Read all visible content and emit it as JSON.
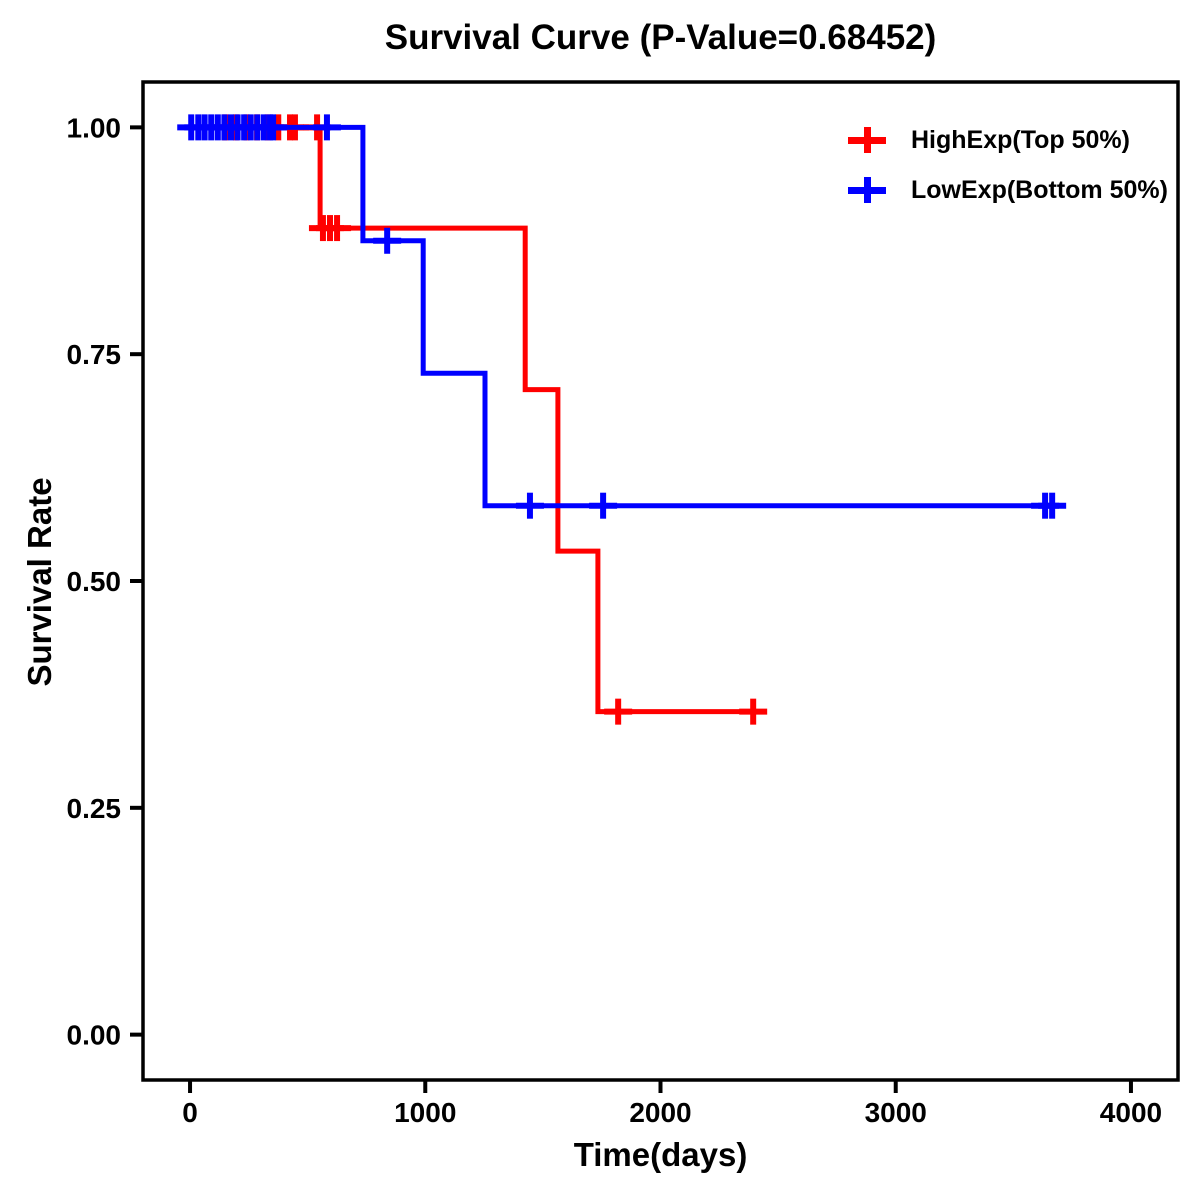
{
  "title": "Survival Curve (P-Value=0.68452)",
  "x_axis": {
    "label": "Time(days)",
    "tick_labels": [
      "0",
      "1000",
      "2000",
      "3000",
      "4000"
    ],
    "tick_values": [
      0,
      1000,
      2000,
      3000,
      4000
    ],
    "range": [
      -200,
      4200
    ]
  },
  "y_axis": {
    "label": "Survival Rate",
    "tick_labels": [
      "0.00",
      "0.25",
      "0.50",
      "0.75",
      "1.00"
    ],
    "tick_values": [
      0,
      0.25,
      0.5,
      0.75,
      1
    ],
    "range": [
      -0.05,
      1.05
    ]
  },
  "legend": {
    "items": [
      {
        "label": "HighExp(Top 50%)",
        "color": "#FF0000"
      },
      {
        "label": "LowExp(Bottom 50%)",
        "color": "#0000FF"
      }
    ]
  },
  "chart_data": {
    "type": "line",
    "subtype": "kaplan-meier-step",
    "title": "Survival Curve (P-Value=0.68452)",
    "p_value": 0.68452,
    "xlabel": "Time(days)",
    "ylabel": "Survival Rate",
    "xlim": [
      -200,
      4200
    ],
    "ylim": [
      -0.05,
      1.05
    ],
    "grid": false,
    "legend_position": "top-right",
    "series": [
      {
        "name": "HighExp(Top 50%)",
        "color": "#FF0000",
        "steps": [
          [
            0,
            1
          ],
          [
            553,
            1
          ],
          [
            553,
            0.889
          ],
          [
            1425,
            0.889
          ],
          [
            1425,
            0.711
          ],
          [
            1564,
            0.711
          ],
          [
            1564,
            0.533
          ],
          [
            1734,
            0.533
          ],
          [
            1734,
            0.356
          ],
          [
            2444,
            0.356
          ]
        ],
        "censors": [
          [
            150,
            1
          ],
          [
            195,
            1
          ],
          [
            240,
            1
          ],
          [
            285,
            1
          ],
          [
            330,
            1
          ],
          [
            375,
            1
          ],
          [
            425,
            1
          ],
          [
            446,
            1
          ],
          [
            540,
            1
          ],
          [
            565,
            0.889
          ],
          [
            595,
            0.889
          ],
          [
            625,
            0.889
          ],
          [
            1820,
            0.356
          ],
          [
            2394,
            0.356
          ]
        ]
      },
      {
        "name": "LowExp(Bottom 50%)",
        "color": "#0000FF",
        "steps": [
          [
            0,
            1
          ],
          [
            735,
            1
          ],
          [
            735,
            0.875
          ],
          [
            991,
            0.875
          ],
          [
            991,
            0.729
          ],
          [
            1254,
            0.729
          ],
          [
            1254,
            0.583
          ],
          [
            3720,
            0.583
          ]
        ],
        "censors": [
          [
            5,
            1
          ],
          [
            35,
            1
          ],
          [
            62,
            1
          ],
          [
            90,
            1
          ],
          [
            118,
            1
          ],
          [
            146,
            1
          ],
          [
            174,
            1
          ],
          [
            202,
            1
          ],
          [
            230,
            1
          ],
          [
            258,
            1
          ],
          [
            286,
            1
          ],
          [
            314,
            1
          ],
          [
            340,
            1
          ],
          [
            353,
            1
          ],
          [
            582,
            1
          ],
          [
            838,
            0.875
          ],
          [
            1445,
            0.583
          ],
          [
            1756,
            0.583
          ],
          [
            3635,
            0.583
          ],
          [
            3665,
            0.583
          ]
        ]
      }
    ]
  }
}
